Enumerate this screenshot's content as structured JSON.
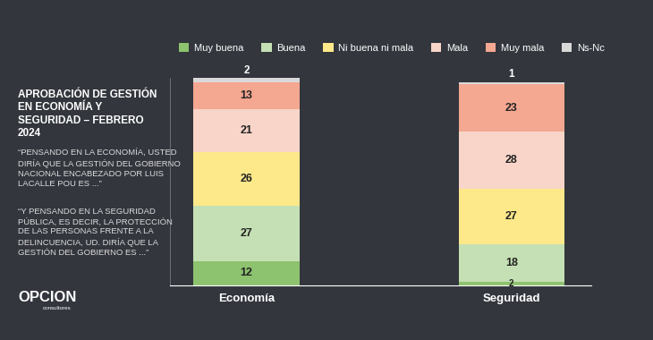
{
  "chart_data": {
    "type": "bar",
    "title": "APROBACIÓN DE GESTIÓN EN ECONOMÍA Y SEGURIDAD – FEBRERO 2024",
    "annotations": [
      "“PENSANDO EN LA ECONOMÍA, USTED DIRÍA QUE LA GESTIÓN DEL GOBIERNO NACIONAL ENCABEZADO POR LUIS LACALLE POU ES ...”",
      "“Y PENSANDO EN LA SEGURIDAD PÚBLICA, ES DECIR, LA PROTECCIÓN DE LAS PERSONAS FRENTE A LA DELINCUENCIA, UD. DIRÍA QUE LA GESTIÓN DEL GOBIERNO ES ...”",
      "OPCION",
      "consultores"
    ],
    "categories": [
      "Economía",
      "Seguridad"
    ],
    "series": [
      {
        "name": "Muy buena",
        "color": "#8dc26f",
        "values": [
          12,
          2
        ]
      },
      {
        "name": "Buena",
        "color": "#c5e0b4",
        "values": [
          27,
          18
        ]
      },
      {
        "name": "Ni buena ni mala",
        "color": "#fde98a",
        "values": [
          26,
          27
        ]
      },
      {
        "name": "Mala",
        "color": "#f8d5c8",
        "values": [
          21,
          28
        ]
      },
      {
        "name": "Muy mala",
        "color": "#f4a791",
        "values": [
          13,
          23
        ]
      },
      {
        "name": "Ns-Nc",
        "color": "#d9d9d9",
        "values": [
          2,
          1
        ]
      }
    ],
    "stacked": true,
    "data_labels": true,
    "legend": "upper center",
    "tick_labels": "x",
    "ylim": [
      0,
      101
    ],
    "yticks": []
  }
}
